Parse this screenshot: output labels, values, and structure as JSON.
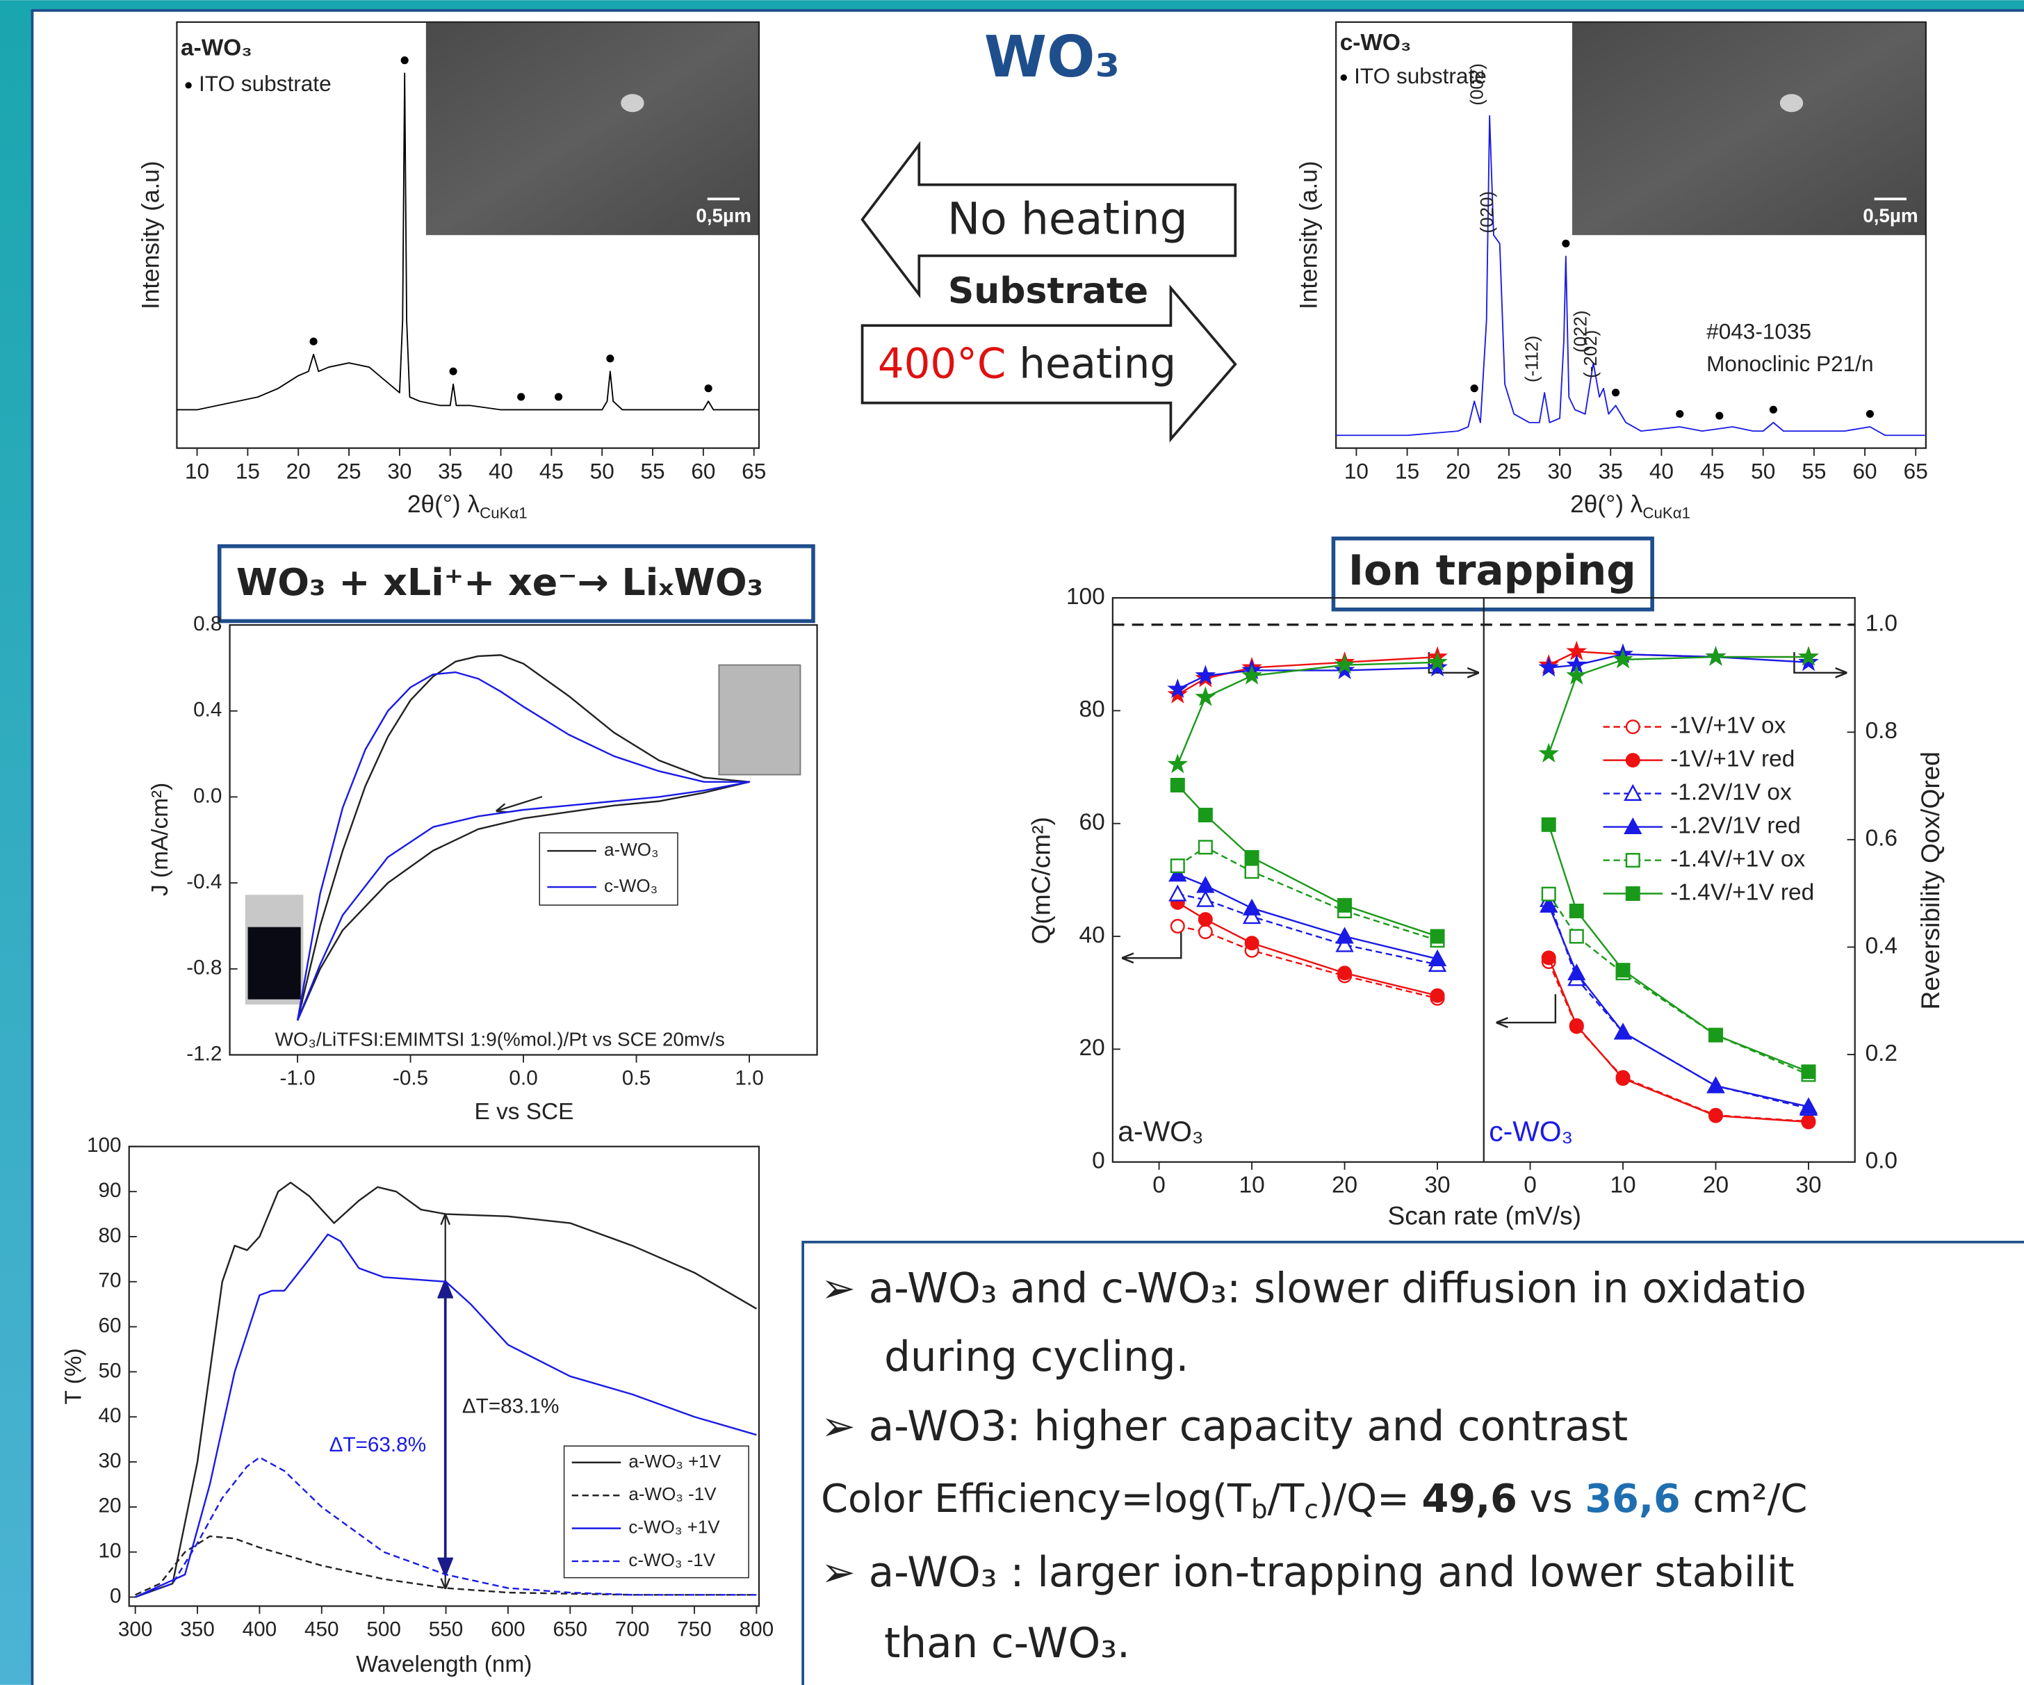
{
  "title": "WO₃",
  "process": {
    "no_heating": "No heating",
    "substrate": "Substrate",
    "temperature": "400°C",
    "heating": " heating"
  },
  "reaction": "WO₃ + xLi⁺+ xe⁻→ LiₓWO₃",
  "conclusions": {
    "lines": [
      "➢ a-WO₃ and c-WO₃: slower diffusion in oxidatio",
      "during cycling.",
      "➢ a-WO3: higher capacity and contrast",
      "➢ a-WO₃ : larger ion-trapping and lower stabilit",
      "than c-WO₃."
    ],
    "efficiency": [
      "Color Efficiency=log(T",
      "b",
      "/T",
      "c",
      ")/Q= ",
      "49,6",
      " vs ",
      "36,6",
      " cm²/C"
    ]
  },
  "chart_data": [
    {
      "type": "line",
      "label": "a-WO₃",
      "legend_text": "ITO substrate",
      "scale_bar": "0,5µm",
      "y_label": "Intensity (a.u)",
      "x_label": "2θ(°) λ",
      "x_label_sub": "CuKα1",
      "xlim": [
        8,
        65.5
      ],
      "ylim": [
        0,
        100
      ],
      "xticks": [
        10,
        15,
        20,
        25,
        30,
        35,
        40,
        45,
        50,
        55,
        60,
        65
      ],
      "color": "#000000",
      "x": [
        8,
        10,
        12,
        14,
        16,
        18,
        20,
        21,
        21.5,
        22,
        23,
        25,
        27,
        29,
        30,
        30.3,
        30.5,
        30.7,
        31,
        32,
        34,
        35,
        35.3,
        35.6,
        37,
        40,
        42,
        45,
        48,
        50,
        50.5,
        50.8,
        51.1,
        52,
        55,
        58,
        60,
        60.5,
        61,
        63,
        65.5
      ],
      "values": [
        9,
        9,
        10,
        11,
        12,
        14,
        17,
        18,
        22,
        18,
        19,
        20,
        19,
        15,
        13,
        30,
        88,
        30,
        12,
        11,
        10,
        10,
        15,
        10,
        10,
        9,
        9,
        9,
        9,
        9,
        11,
        18,
        11,
        9,
        9,
        9,
        9,
        11,
        9,
        9,
        9
      ],
      "ito_peaks": [
        21.5,
        30.5,
        35.3,
        42,
        45.7,
        50.8,
        60.5
      ]
    },
    {
      "type": "line",
      "label": "c-WO₃",
      "legend_text": "ITO substrate",
      "scale_bar": "0,5µm",
      "y_label": "Intensity (a.u)",
      "x_label": "2θ(°) λ",
      "x_label_sub": "CuKα1",
      "xlim": [
        8,
        66
      ],
      "ylim": [
        0,
        100
      ],
      "xticks": [
        10,
        15,
        20,
        25,
        30,
        35,
        40,
        45,
        50,
        55,
        60,
        65
      ],
      "color": "#1a1ae6",
      "x": [
        8,
        10,
        15,
        20,
        21,
        21.6,
        22.2,
        22.8,
        23.1,
        23.5,
        24.1,
        24.6,
        25.5,
        27,
        28,
        28.5,
        29,
        30,
        30.4,
        30.6,
        30.9,
        31.5,
        32.5,
        33.3,
        33.9,
        34.3,
        34.8,
        35.5,
        36.5,
        38,
        41.8,
        44,
        47,
        49,
        50,
        51,
        52,
        55,
        58,
        60.5,
        62,
        65.9
      ],
      "values": [
        3,
        3,
        3,
        4,
        5,
        11,
        6,
        30,
        78,
        50,
        48,
        15,
        8,
        6,
        6,
        13,
        6,
        7,
        25,
        45,
        12,
        9,
        8,
        20,
        12,
        14,
        8,
        10,
        6,
        4,
        5,
        4,
        5,
        4,
        4,
        6,
        4,
        4,
        4,
        5,
        3,
        3
      ],
      "ito_peaks": [
        21.6,
        30.6,
        35.5,
        41.8,
        45.7,
        51,
        60.5
      ],
      "peak_labels": [
        {
          "text": "(002)",
          "x": 23.1
        },
        {
          "text": "(020)",
          "x": 24.1
        },
        {
          "text": "(-112)",
          "x": 28.5
        },
        {
          "text": "(022)",
          "x": 33.3
        },
        {
          "text": "(-202)",
          "x": 34.3
        }
      ],
      "annotations": [
        {
          "text": "#043-1035",
          "color": "#222222"
        },
        {
          "text": "Monoclinic P21/n",
          "color": "#222222"
        }
      ]
    },
    {
      "type": "line",
      "x_label": "E vs SCE",
      "y_label": "J (mA/cm²)",
      "xlim": [
        -1.3,
        1.3
      ],
      "ylim": [
        -1.2,
        0.8
      ],
      "xticks": [
        {
          "value": -1,
          "label": "-1.0"
        },
        -0.5,
        {
          "value": 0,
          "label": "0.0"
        },
        0.5,
        {
          "value": 1,
          "label": "1.0"
        }
      ],
      "yticks": [
        -1.2,
        -0.8,
        -0.4,
        {
          "value": 0,
          "label": "0.0"
        },
        0.4,
        0.8
      ],
      "series": [
        {
          "name": "a-WO₃",
          "color": "#222222",
          "x": [
            -1.0,
            -0.9,
            -0.8,
            -0.7,
            -0.6,
            -0.5,
            -0.4,
            -0.3,
            -0.2,
            -0.1,
            0.0,
            0.2,
            0.4,
            0.6,
            0.8,
            1.0,
            0.8,
            0.6,
            0.4,
            0.2,
            0.0,
            -0.2,
            -0.4,
            -0.6,
            -0.8,
            -0.9,
            -1.0
          ],
          "values": [
            -1.04,
            -0.6,
            -0.25,
            0.05,
            0.28,
            0.45,
            0.56,
            0.63,
            0.655,
            0.66,
            0.62,
            0.47,
            0.3,
            0.17,
            0.09,
            0.07,
            0.02,
            -0.02,
            -0.04,
            -0.07,
            -0.1,
            -0.15,
            -0.25,
            -0.4,
            -0.62,
            -0.8,
            -1.04
          ]
        },
        {
          "name": "c-WO₃",
          "color": "#1a1ae6",
          "x": [
            -1.0,
            -0.9,
            -0.8,
            -0.7,
            -0.6,
            -0.5,
            -0.4,
            -0.3,
            -0.2,
            -0.1,
            0.0,
            0.2,
            0.4,
            0.6,
            0.8,
            1.0,
            0.8,
            0.6,
            0.4,
            0.2,
            0.0,
            -0.2,
            -0.4,
            -0.6,
            -0.8,
            -0.9,
            -1.0
          ],
          "values": [
            -1.04,
            -0.45,
            -0.05,
            0.22,
            0.4,
            0.51,
            0.57,
            0.58,
            0.55,
            0.49,
            0.42,
            0.29,
            0.19,
            0.12,
            0.07,
            0.07,
            0.03,
            0.0,
            -0.02,
            -0.04,
            -0.06,
            -0.09,
            -0.14,
            -0.28,
            -0.55,
            -0.78,
            -1.04
          ]
        }
      ],
      "annotations": [
        {
          "text": "WO₃/LiTFSI:EMIMTSI 1:9(%mol.)/Pt vs SCE 20mv/s",
          "color": "#222222"
        }
      ]
    },
    {
      "type": "line",
      "x_label": "Wavelength (nm)",
      "y_label": "T (%)",
      "xlim": [
        295,
        802
      ],
      "ylim": [
        -2,
        100
      ],
      "xticks": [
        300,
        350,
        400,
        450,
        500,
        550,
        600,
        650,
        700,
        750,
        800
      ],
      "yticks": [
        0,
        10,
        20,
        30,
        40,
        50,
        60,
        70,
        80,
        90,
        100
      ],
      "series": [
        {
          "name": "a-WO₃ +1V",
          "color": "#222222",
          "dashed": false,
          "x": [
            300,
            330,
            350,
            370,
            380,
            390,
            400,
            415,
            425,
            440,
            460,
            480,
            495,
            510,
            530,
            550,
            600,
            650,
            700,
            750,
            800
          ],
          "values": [
            0,
            3,
            30,
            70,
            78,
            77,
            80,
            90,
            92,
            89,
            83,
            88,
            91,
            90,
            86,
            85,
            84.5,
            83,
            78,
            72,
            64
          ]
        },
        {
          "name": "a-WO₃ -1V",
          "color": "#222222",
          "dashed": true,
          "x": [
            300,
            320,
            340,
            360,
            380,
            400,
            450,
            500,
            550,
            600,
            700,
            800
          ],
          "values": [
            0.5,
            3,
            10,
            13.5,
            13,
            11,
            7,
            4,
            2,
            1,
            0.5,
            0.5
          ]
        },
        {
          "name": "c-WO₃ +1V",
          "color": "#1a1ae6",
          "dashed": false,
          "x": [
            300,
            340,
            360,
            380,
            400,
            410,
            420,
            440,
            455,
            465,
            480,
            500,
            550,
            570,
            600,
            650,
            700,
            750,
            800
          ],
          "values": [
            0,
            5,
            25,
            50,
            67,
            68,
            68,
            75,
            80.5,
            79,
            73,
            71,
            70,
            65,
            56,
            49,
            45,
            40,
            36
          ]
        },
        {
          "name": "c-WO₃ -1V",
          "color": "#1a1ae6",
          "dashed": true,
          "x": [
            300,
            330,
            350,
            370,
            390,
            400,
            420,
            450,
            500,
            550,
            600,
            650,
            700,
            800
          ],
          "values": [
            0,
            3,
            12,
            22,
            29,
            31,
            28,
            20,
            10,
            5,
            2,
            1,
            0.5,
            0.5
          ]
        }
      ],
      "annotations": [
        {
          "text": "ΔT=83.1%",
          "color": "#222222"
        },
        {
          "text": "ΔT=63.8%",
          "color": "#1a1ae6"
        }
      ]
    },
    {
      "type": "line",
      "title": "Ion trapping",
      "x_label": "Scan rate (mV/s)",
      "y_label": "Q(mC/cm²)",
      "y2_label": "Reversibility Qox/Qred",
      "xlim": [
        -5,
        35
      ],
      "ylim": [
        0,
        100
      ],
      "y2lim": [
        0,
        1.05
      ],
      "xticks": [
        0,
        10,
        20,
        30
      ],
      "yticks": [
        0,
        20,
        40,
        60,
        80,
        100
      ],
      "y2ticks": [
        {
          "value": 0,
          "label": "0.0"
        },
        0.2,
        0.4,
        0.6,
        0.8,
        {
          "value": 1,
          "label": "1.0"
        }
      ],
      "reference_y2": 1,
      "legend": [
        "-1V/+1V ox",
        "-1V/+1V red",
        "-1.2V/1V ox",
        "-1.2V/1V red",
        "-1.4V/+1V ox",
        "-1.4V/+1V red"
      ],
      "panels": [
        {
          "label": "a-WO₃",
          "label_color": "#222222",
          "x": [
            2,
            5,
            10,
            20,
            30
          ],
          "series": [
            {
              "color": "#ee1111",
              "dashed": true,
              "marker": "circle-open",
              "values": [
                41.8,
                40.8,
                37.5,
                33,
                29
              ]
            },
            {
              "color": "#ee1111",
              "dashed": false,
              "marker": "circle",
              "values": [
                46,
                43,
                38.8,
                33.5,
                29.5
              ]
            },
            {
              "color": "#1a1ae6",
              "dashed": true,
              "marker": "triangle-open",
              "values": [
                47.5,
                46.5,
                43.5,
                38.5,
                35
              ]
            },
            {
              "color": "#1a1ae6",
              "dashed": false,
              "marker": "triangle",
              "values": [
                51,
                49,
                45,
                40,
                36
              ]
            },
            {
              "color": "#1a9a1a",
              "dashed": true,
              "marker": "square-open",
              "values": [
                52.5,
                55.8,
                51.5,
                44.5,
                39.3
              ]
            },
            {
              "color": "#1a9a1a",
              "dashed": false,
              "marker": "square",
              "values": [
                66.8,
                61.5,
                54,
                45.5,
                40
              ]
            },
            {
              "color": "#ee1111",
              "dashed": false,
              "marker": "star",
              "axis": "y2",
              "values": [
                0.87,
                0.9,
                0.92,
                0.93,
                0.94
              ]
            },
            {
              "color": "#1a1ae6",
              "dashed": false,
              "marker": "star",
              "axis": "y2",
              "values": [
                0.88,
                0.905,
                0.915,
                0.915,
                0.92
              ]
            },
            {
              "color": "#1a9a1a",
              "dashed": false,
              "marker": "star",
              "axis": "y2",
              "values": [
                0.74,
                0.865,
                0.905,
                0.925,
                0.93
              ]
            }
          ]
        },
        {
          "label": "c-WO₃",
          "label_color": "#1a1ae6",
          "x": [
            2,
            5,
            10,
            20,
            30
          ],
          "series": [
            {
              "color": "#ee1111",
              "dashed": true,
              "marker": "circle-open",
              "values": [
                35.5,
                24,
                15,
                8.3,
                7.2
              ]
            },
            {
              "color": "#ee1111",
              "dashed": false,
              "marker": "circle",
              "values": [
                36.2,
                24.2,
                14.8,
                8.2,
                7.1
              ]
            },
            {
              "color": "#1a1ae6",
              "dashed": true,
              "marker": "triangle-open",
              "values": [
                46.5,
                32.5,
                23,
                13.5,
                9.5
              ]
            },
            {
              "color": "#1a1ae6",
              "dashed": false,
              "marker": "triangle",
              "values": [
                45.5,
                33.5,
                23,
                13.5,
                9.8
              ]
            },
            {
              "color": "#1a9a1a",
              "dashed": true,
              "marker": "square-open",
              "values": [
                47.5,
                40,
                33.5,
                22.5,
                15.5
              ]
            },
            {
              "color": "#1a9a1a",
              "dashed": false,
              "marker": "square",
              "values": [
                59.8,
                44.5,
                34,
                22.5,
                16
              ]
            },
            {
              "color": "#ee1111",
              "dashed": false,
              "marker": "star",
              "axis": "y2",
              "values": [
                0.925,
                0.95,
                0.945,
                0.94,
                0.94
              ]
            },
            {
              "color": "#1a1ae6",
              "dashed": false,
              "marker": "star",
              "axis": "y2",
              "values": [
                0.92,
                0.925,
                0.945,
                0.94,
                0.93
              ]
            },
            {
              "color": "#1a9a1a",
              "dashed": false,
              "marker": "star",
              "axis": "y2",
              "values": [
                0.76,
                0.905,
                0.935,
                0.94,
                0.94
              ]
            }
          ]
        }
      ]
    }
  ]
}
